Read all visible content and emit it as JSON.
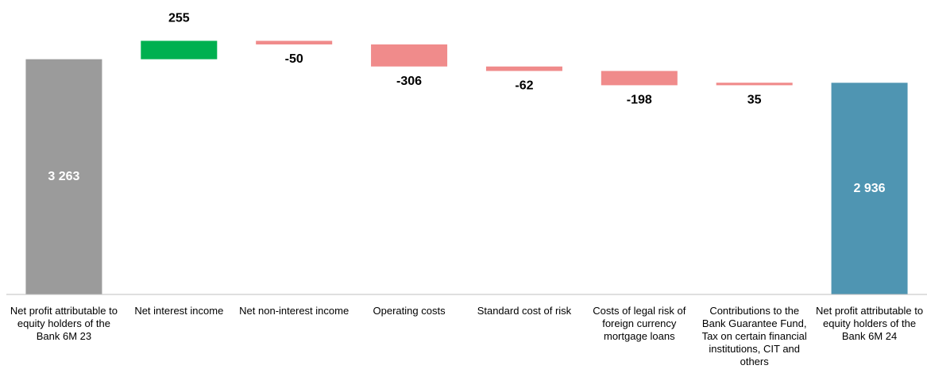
{
  "chart_data": {
    "type": "waterfall",
    "categories": [
      "Net profit attributable to equity holders of the Bank 6M 23",
      "Net interest income",
      "Net non-interest income",
      "Operating costs",
      "Standard cost of risk",
      "Costs of legal risk of foreign currency mortgage loans",
      "Contributions to the Bank Guarantee Fund, Tax on certain financial institutions, CIT and others",
      "Net profit attributable to equity holders of the Bank 6M 24"
    ],
    "values": [
      3263,
      255,
      -50,
      -306,
      -62,
      -198,
      35,
      2936
    ],
    "value_labels": [
      "3 263",
      "255",
      "-50",
      "-306",
      "-62",
      "-198",
      "35",
      "2 936"
    ],
    "measures": [
      "total",
      "relative",
      "relative",
      "relative",
      "relative",
      "relative",
      "relative",
      "total"
    ],
    "label_positions": [
      "inside",
      "above",
      "below",
      "below",
      "below",
      "below",
      "below",
      "inside"
    ],
    "colors": [
      "#9b9b9b",
      "#00b050",
      "#f08b8b",
      "#f08b8b",
      "#f08b8b",
      "#f08b8b",
      "#f08b8b",
      "#4f95b2"
    ],
    "ylim": [
      0,
      3600
    ]
  }
}
